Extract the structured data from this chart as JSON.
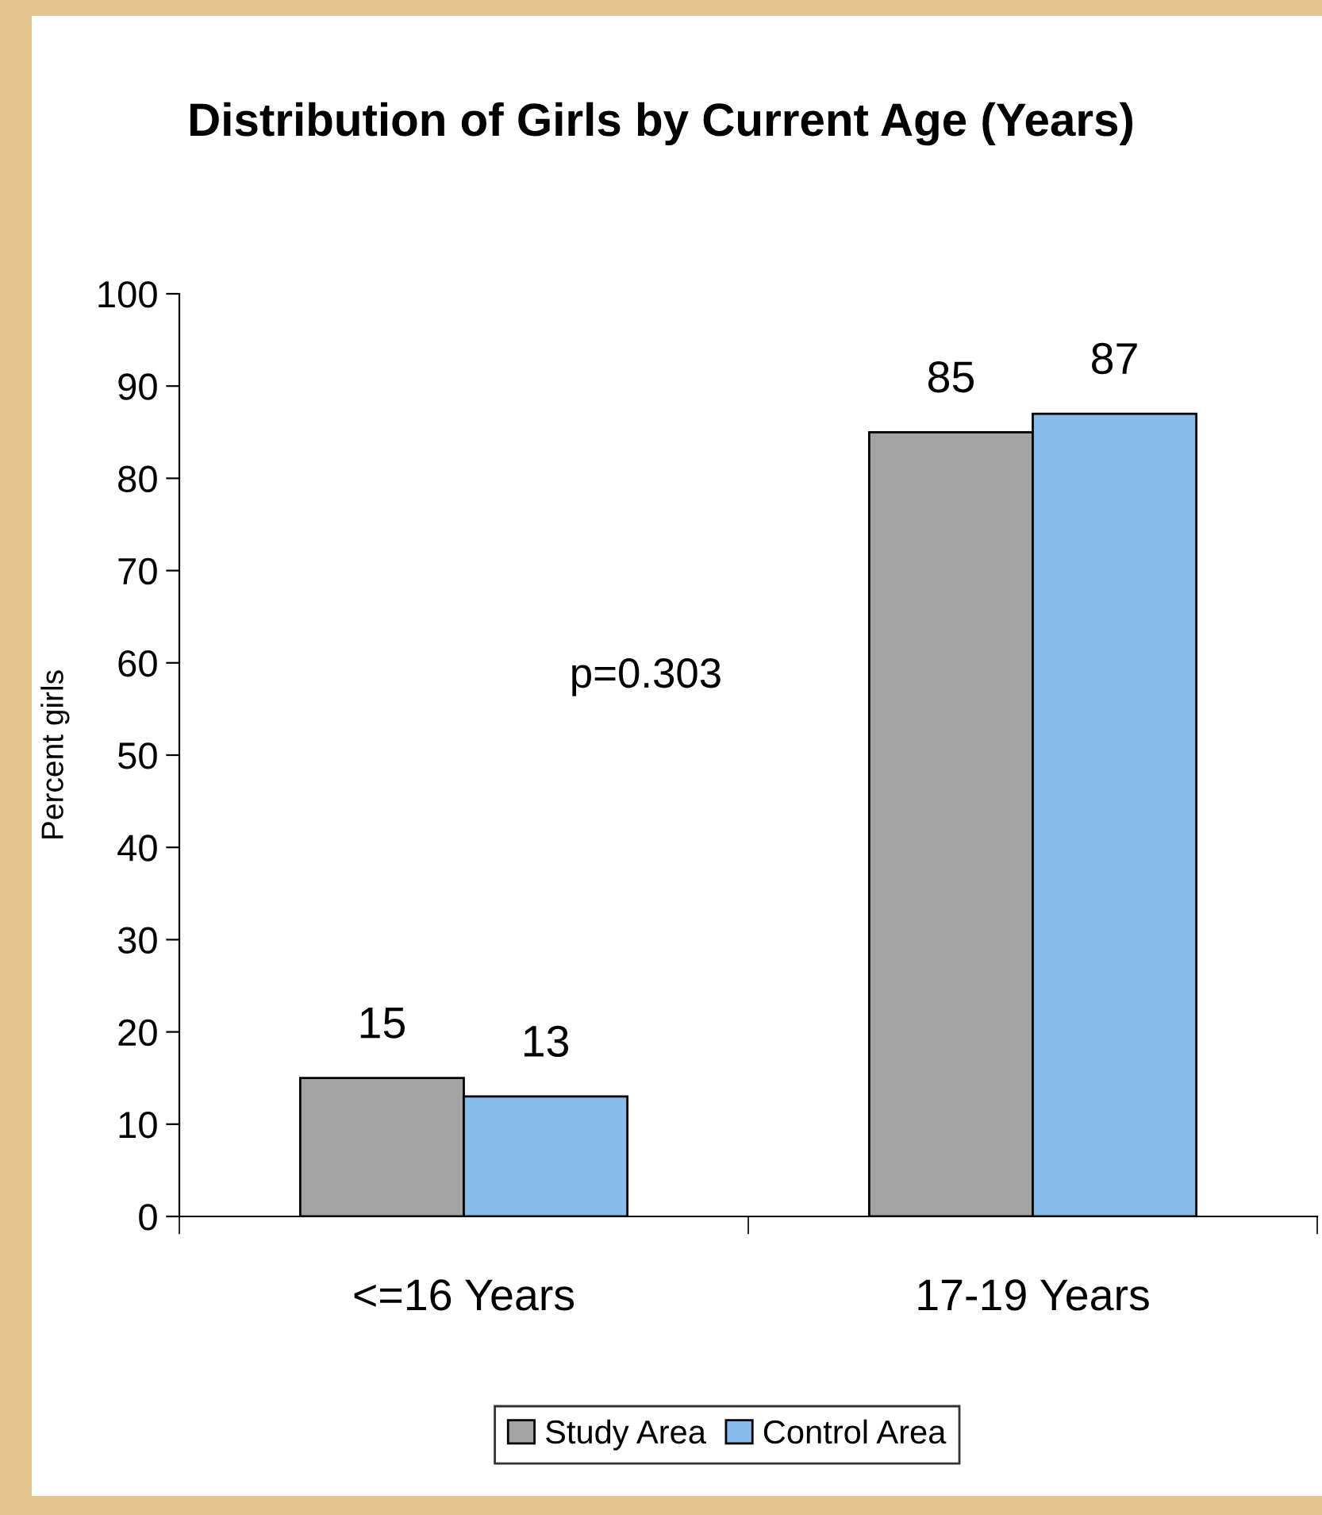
{
  "chart_data": {
    "type": "bar",
    "title": "Distribution of Girls by Current Age (Years)",
    "ylabel": "Percent girls",
    "categories": [
      "<=16 Years",
      "17-19 Years"
    ],
    "series": [
      {
        "name": "Study Area",
        "color": "#a3a3a3",
        "values": [
          15,
          85
        ]
      },
      {
        "name": "Control Area",
        "color": "#86bbea",
        "values": [
          13,
          87
        ]
      }
    ],
    "ylim": [
      0,
      100
    ],
    "yticks": [
      0,
      10,
      20,
      30,
      40,
      50,
      60,
      70,
      80,
      90,
      100
    ],
    "grid": false,
    "legend": "bottom",
    "data_labels": true,
    "annotations": [
      "p=0.303"
    ]
  }
}
